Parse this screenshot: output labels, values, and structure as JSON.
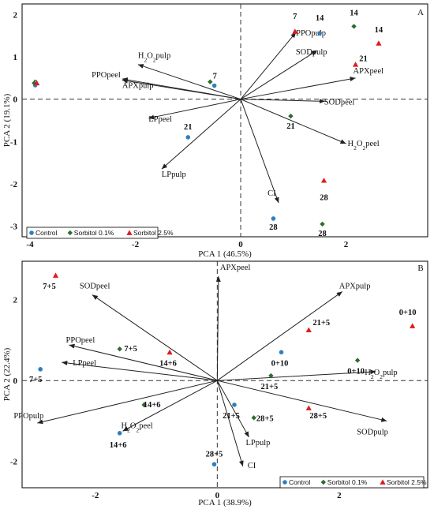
{
  "chart_data": [
    {
      "type": "scatter",
      "panel": "A",
      "title": "",
      "xlabel": "PCA 1 (46.5%)",
      "ylabel": "PCA 2 (19.1%)",
      "xlim": [
        -4.15,
        3.55
      ],
      "ylim": [
        -3.25,
        2.25
      ],
      "xticks": [
        -4,
        -2,
        0,
        2
      ],
      "xtick_labels": [
        "-4",
        "-2",
        "0",
        "2"
      ],
      "yticks": [
        2,
        1,
        0,
        -1,
        -2,
        -3
      ],
      "ytick_labels": [
        "2",
        "1",
        "0",
        "-1",
        "-2",
        "-3"
      ],
      "grid": false,
      "legend_position": "bottom-left",
      "series": [
        {
          "name": "Control",
          "color": "#2e7fbf",
          "marker": "circle",
          "points": [
            {
              "x": -3.9,
              "y": 0.33,
              "label": "0"
            },
            {
              "x": -0.5,
              "y": 0.32,
              "label": ""
            },
            {
              "x": -1.0,
              "y": -0.9,
              "label": "21"
            },
            {
              "x": 1.5,
              "y": 1.56,
              "label": "14"
            },
            {
              "x": 0.62,
              "y": -2.82,
              "label": "28"
            }
          ]
        },
        {
          "name": "Sorbitol 0.1%",
          "color": "#2e6b2e",
          "marker": "diamond",
          "points": [
            {
              "x": -3.92,
              "y": 0.38,
              "label": ""
            },
            {
              "x": -0.58,
              "y": 0.41,
              "label": "7"
            },
            {
              "x": 0.95,
              "y": -0.4,
              "label": "21"
            },
            {
              "x": 2.15,
              "y": 1.72,
              "label": "14"
            },
            {
              "x": 1.55,
              "y": -2.95,
              "label": "28"
            }
          ]
        },
        {
          "name": "Sorbitol 2.5%",
          "color": "#e01b1b",
          "marker": "triangle",
          "points": [
            {
              "x": -3.87,
              "y": 0.38,
              "label": ""
            },
            {
              "x": 1.03,
              "y": 1.6,
              "label": "7"
            },
            {
              "x": 2.18,
              "y": 0.82,
              "label": "21"
            },
            {
              "x": 2.62,
              "y": 1.32,
              "label": "14"
            },
            {
              "x": 1.58,
              "y": -1.92,
              "label": "28"
            }
          ]
        }
      ],
      "loadings": [
        {
          "label": "PPOpulp",
          "x": 1.05,
          "y": 1.58
        },
        {
          "label": "SODpulp",
          "x": 1.45,
          "y": 1.15
        },
        {
          "label": "APXpeel",
          "x": 2.18,
          "y": 0.5
        },
        {
          "label": "SODpeel",
          "x": 1.6,
          "y": -0.05
        },
        {
          "label": "H2O2peel",
          "x": 2.0,
          "y": -1.05
        },
        {
          "label": "CI",
          "x": 0.72,
          "y": -2.45
        },
        {
          "label": "LPpulp",
          "x": -1.5,
          "y": -1.65
        },
        {
          "label": "LPpeel",
          "x": -1.75,
          "y": -0.45
        },
        {
          "label": "APXpulp",
          "x": -2.25,
          "y": 0.45
        },
        {
          "label": "PPOpeel",
          "x": -2.25,
          "y": 0.48
        },
        {
          "label": "H2O2pulp",
          "x": -1.95,
          "y": 0.82
        }
      ]
    },
    {
      "type": "scatter",
      "panel": "B",
      "title": "",
      "xlabel": "PCA 1 (38.9%)",
      "ylabel": "PCA 2 (22.4%)",
      "xlim": [
        -3.2,
        3.45
      ],
      "ylim": [
        -2.65,
        2.95
      ],
      "xticks": [
        -2,
        0,
        2
      ],
      "xtick_labels": [
        "-2",
        "0",
        "2"
      ],
      "yticks": [
        2,
        0,
        -2
      ],
      "ytick_labels": [
        "2",
        "0",
        "-2"
      ],
      "grid": false,
      "legend_position": "bottom-right",
      "series": [
        {
          "name": "Control",
          "color": "#2e7fbf",
          "marker": "circle",
          "points": [
            {
              "x": -2.9,
              "y": 0.28,
              "label": "7+5"
            },
            {
              "x": 1.05,
              "y": 0.7,
              "label": "0+10"
            },
            {
              "x": 0.28,
              "y": -0.6,
              "label": "21+5"
            },
            {
              "x": -1.6,
              "y": -1.3,
              "label": "14+6"
            },
            {
              "x": -0.05,
              "y": -2.07,
              "label": "28+5"
            }
          ]
        },
        {
          "name": "Sorbitol 0.1%",
          "color": "#2e6b2e",
          "marker": "diamond",
          "points": [
            {
              "x": -1.6,
              "y": 0.78,
              "label": "7+5"
            },
            {
              "x": 2.3,
              "y": 0.5,
              "label": "0+10"
            },
            {
              "x": 0.88,
              "y": 0.12,
              "label": "21+5"
            },
            {
              "x": -1.2,
              "y": -0.6,
              "label": "14+6"
            },
            {
              "x": 0.6,
              "y": -0.92,
              "label": "28+5"
            }
          ]
        },
        {
          "name": "Sorbitol 2.5%",
          "color": "#e01b1b",
          "marker": "triangle",
          "points": [
            {
              "x": -2.65,
              "y": 2.6,
              "label": "7+5"
            },
            {
              "x": 1.5,
              "y": 1.25,
              "label": "21+5"
            },
            {
              "x": 3.2,
              "y": 1.35,
              "label": "0+10"
            },
            {
              "x": -0.78,
              "y": 0.7,
              "label": "14+6"
            },
            {
              "x": 1.5,
              "y": -0.68,
              "label": "28+5"
            }
          ]
        }
      ],
      "loadings": [
        {
          "label": "APXpeel",
          "x": 0.02,
          "y": 2.58
        },
        {
          "label": "APXpulp",
          "x": 2.05,
          "y": 2.2
        },
        {
          "label": "SODpeel",
          "x": -2.05,
          "y": 2.12
        },
        {
          "label": "PPOpeel",
          "x": -2.43,
          "y": 0.88
        },
        {
          "label": "LPpeel",
          "x": -2.55,
          "y": 0.45
        },
        {
          "label": "H2O2pulp",
          "x": 2.6,
          "y": 0.22
        },
        {
          "label": "SODpulp",
          "x": 2.78,
          "y": -1.0
        },
        {
          "label": "PPOpulp",
          "x": -2.95,
          "y": -1.05
        },
        {
          "label": "H2O2peel",
          "x": -1.55,
          "y": -1.25
        },
        {
          "label": "LPpulp",
          "x": 0.52,
          "y": -1.4
        },
        {
          "label": "CI",
          "x": 0.42,
          "y": -2.12
        }
      ]
    }
  ]
}
